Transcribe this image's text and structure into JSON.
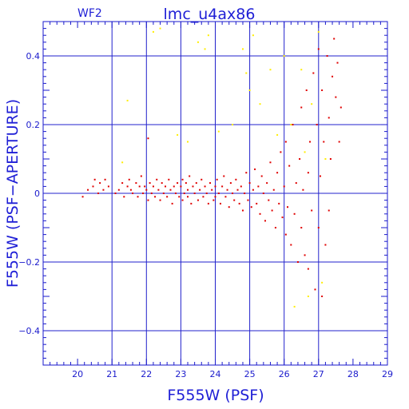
{
  "chart_data": {
    "type": "scatter",
    "title": "lmc_u4ax86",
    "corner_label": "WF2",
    "xlabel": "F555W (PSF)",
    "ylabel": "F555W (PSF−APERTURE)",
    "xlim": [
      19,
      29
    ],
    "ylim": [
      -0.5,
      0.5
    ],
    "x_ticks": [
      20,
      21,
      22,
      23,
      24,
      25,
      26,
      27,
      28,
      29
    ],
    "y_ticks": [
      -0.4,
      -0.2,
      0,
      0.2,
      0.4
    ],
    "y_tick_labels": [
      "−0.4",
      "−0.2",
      "0",
      "0.2",
      "0.4"
    ],
    "grid": true,
    "colors": {
      "axis": "#1a1acc",
      "grid": "#2222cc",
      "series_red": "#e00000",
      "series_yellow": "#ffee00"
    },
    "series": [
      {
        "color": "#e00000",
        "points": [
          [
            20.15,
            -0.01
          ],
          [
            20.3,
            0.01
          ],
          [
            20.45,
            0.02
          ],
          [
            20.5,
            0.04
          ],
          [
            20.6,
            0.0
          ],
          [
            20.65,
            0.03
          ],
          [
            20.75,
            0.01
          ],
          [
            20.8,
            0.04
          ],
          [
            20.9,
            0.02
          ],
          [
            21.1,
            0.0
          ],
          [
            21.2,
            0.01
          ],
          [
            21.3,
            0.03
          ],
          [
            21.35,
            -0.01
          ],
          [
            21.45,
            0.02
          ],
          [
            21.5,
            0.04
          ],
          [
            21.55,
            0.01
          ],
          [
            21.6,
            0.0
          ],
          [
            21.7,
            0.03
          ],
          [
            21.75,
            -0.01
          ],
          [
            21.8,
            0.02
          ],
          [
            21.85,
            0.05
          ],
          [
            21.9,
            0.0
          ],
          [
            21.95,
            0.02
          ],
          [
            22.0,
            0.01
          ],
          [
            22.05,
            -0.02
          ],
          [
            22.05,
            0.16
          ],
          [
            22.1,
            0.03
          ],
          [
            22.15,
            0.0
          ],
          [
            22.2,
            0.02
          ],
          [
            22.25,
            -0.01
          ],
          [
            22.3,
            0.04
          ],
          [
            22.35,
            0.01
          ],
          [
            22.4,
            -0.02
          ],
          [
            22.45,
            0.03
          ],
          [
            22.5,
            0.0
          ],
          [
            22.55,
            0.02
          ],
          [
            22.6,
            -0.01
          ],
          [
            22.65,
            0.04
          ],
          [
            22.7,
            0.01
          ],
          [
            22.75,
            -0.03
          ],
          [
            22.8,
            0.02
          ],
          [
            22.85,
            0.0
          ],
          [
            22.9,
            0.03
          ],
          [
            22.95,
            -0.01
          ],
          [
            23.0,
            0.02
          ],
          [
            23.05,
            0.04
          ],
          [
            23.05,
            -0.02
          ],
          [
            23.1,
            0.0
          ],
          [
            23.15,
            0.03
          ],
          [
            23.2,
            -0.01
          ],
          [
            23.2,
            0.01
          ],
          [
            23.25,
            0.05
          ],
          [
            23.3,
            -0.03
          ],
          [
            23.35,
            0.02
          ],
          [
            23.4,
            0.0
          ],
          [
            23.45,
            0.03
          ],
          [
            23.5,
            -0.02
          ],
          [
            23.55,
            0.01
          ],
          [
            23.6,
            0.04
          ],
          [
            23.65,
            -0.01
          ],
          [
            23.7,
            0.02
          ],
          [
            23.75,
            0.0
          ],
          [
            23.8,
            -0.03
          ],
          [
            23.85,
            0.03
          ],
          [
            23.9,
            0.01
          ],
          [
            23.95,
            -0.02
          ],
          [
            24.0,
            0.02
          ],
          [
            24.0,
            -0.01
          ],
          [
            24.05,
            0.04
          ],
          [
            24.1,
            0.0
          ],
          [
            24.15,
            -0.03
          ],
          [
            24.2,
            0.02
          ],
          [
            24.25,
            0.05
          ],
          [
            24.3,
            -0.01
          ],
          [
            24.35,
            0.01
          ],
          [
            24.4,
            -0.04
          ],
          [
            24.45,
            0.03
          ],
          [
            24.5,
            0.0
          ],
          [
            24.55,
            -0.02
          ],
          [
            24.6,
            0.04
          ],
          [
            24.65,
            0.01
          ],
          [
            24.7,
            -0.03
          ],
          [
            24.75,
            0.02
          ],
          [
            24.8,
            -0.05
          ],
          [
            24.85,
            0.0
          ],
          [
            24.9,
            0.06
          ],
          [
            24.95,
            -0.02
          ],
          [
            25.0,
            0.03
          ],
          [
            25.05,
            -0.04
          ],
          [
            25.1,
            0.01
          ],
          [
            25.15,
            0.07
          ],
          [
            25.2,
            -0.03
          ],
          [
            25.25,
            0.02
          ],
          [
            25.3,
            -0.06
          ],
          [
            25.35,
            0.05
          ],
          [
            25.4,
            0.0
          ],
          [
            25.45,
            -0.08
          ],
          [
            25.5,
            0.03
          ],
          [
            25.55,
            -0.02
          ],
          [
            25.6,
            0.09
          ],
          [
            25.65,
            -0.05
          ],
          [
            25.7,
            0.01
          ],
          [
            25.75,
            -0.1
          ],
          [
            25.8,
            0.06
          ],
          [
            25.85,
            -0.03
          ],
          [
            25.9,
            0.12
          ],
          [
            25.95,
            -0.07
          ],
          [
            26.0,
            0.02
          ],
          [
            26.05,
            0.15
          ],
          [
            26.05,
            -0.12
          ],
          [
            26.1,
            -0.04
          ],
          [
            26.15,
            0.08
          ],
          [
            26.2,
            -0.15
          ],
          [
            26.25,
            0.2
          ],
          [
            26.3,
            -0.06
          ],
          [
            26.35,
            0.03
          ],
          [
            26.4,
            -0.2
          ],
          [
            26.45,
            0.1
          ],
          [
            26.5,
            0.25
          ],
          [
            26.5,
            -0.1
          ],
          [
            26.55,
            0.01
          ],
          [
            26.6,
            -0.18
          ],
          [
            26.65,
            0.3
          ],
          [
            26.7,
            0.06
          ],
          [
            26.7,
            -0.22
          ],
          [
            26.75,
            0.15
          ],
          [
            26.8,
            -0.05
          ],
          [
            26.85,
            0.35
          ],
          [
            26.9,
            -0.28
          ],
          [
            26.95,
            0.2
          ],
          [
            27.0,
            0.42
          ],
          [
            27.0,
            -0.1
          ],
          [
            27.05,
            0.05
          ],
          [
            27.1,
            -0.3
          ],
          [
            27.1,
            0.3
          ],
          [
            27.15,
            0.15
          ],
          [
            27.2,
            -0.15
          ],
          [
            27.25,
            0.4
          ],
          [
            27.3,
            0.22
          ],
          [
            27.3,
            -0.05
          ],
          [
            27.35,
            0.1
          ],
          [
            27.4,
            0.34
          ],
          [
            27.45,
            0.45
          ],
          [
            27.5,
            0.28
          ],
          [
            27.55,
            0.38
          ],
          [
            27.6,
            0.15
          ],
          [
            27.65,
            0.25
          ]
        ]
      },
      {
        "color": "#ffee00",
        "points": [
          [
            21.3,
            0.09
          ],
          [
            21.45,
            0.27
          ],
          [
            22.2,
            0.47
          ],
          [
            22.4,
            0.48
          ],
          [
            22.9,
            0.17
          ],
          [
            23.2,
            0.15
          ],
          [
            23.5,
            0.44
          ],
          [
            23.7,
            0.42
          ],
          [
            23.8,
            0.46
          ],
          [
            24.1,
            0.18
          ],
          [
            24.5,
            0.2
          ],
          [
            24.8,
            0.42
          ],
          [
            24.9,
            0.35
          ],
          [
            25.0,
            0.3
          ],
          [
            25.1,
            0.46
          ],
          [
            25.3,
            0.26
          ],
          [
            25.6,
            0.36
          ],
          [
            25.8,
            0.17
          ],
          [
            26.0,
            0.4
          ],
          [
            26.2,
            0.2
          ],
          [
            26.3,
            -0.33
          ],
          [
            26.5,
            0.36
          ],
          [
            26.6,
            0.12
          ],
          [
            26.7,
            -0.3
          ],
          [
            26.8,
            0.26
          ],
          [
            27.0,
            0.47
          ],
          [
            27.1,
            -0.26
          ],
          [
            27.2,
            0.1
          ]
        ]
      }
    ]
  }
}
